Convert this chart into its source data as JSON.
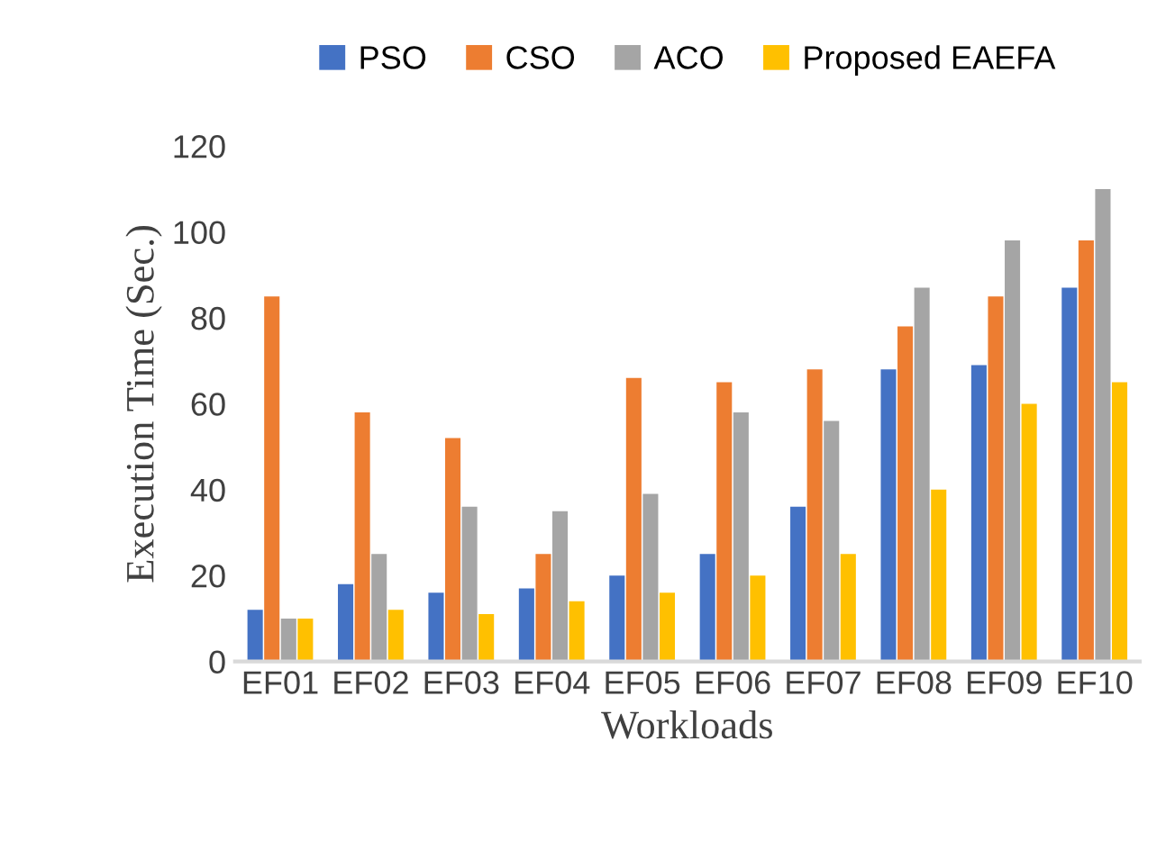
{
  "chart_data": {
    "type": "bar",
    "xlabel": "Workloads",
    "ylabel": "Execution Time (Sec.)",
    "categories": [
      "EF01",
      "EF02",
      "EF03",
      "EF04",
      "EF05",
      "EF06",
      "EF07",
      "EF08",
      "EF09",
      "EF10"
    ],
    "series": [
      {
        "name": "PSO",
        "color": "#4472c4",
        "values": [
          12,
          18,
          16,
          17,
          20,
          25,
          36,
          68,
          69,
          87
        ]
      },
      {
        "name": "CSO",
        "color": "#ed7d31",
        "values": [
          85,
          58,
          52,
          25,
          66,
          65,
          68,
          78,
          85,
          98
        ]
      },
      {
        "name": "ACO",
        "color": "#a5a5a5",
        "values": [
          10,
          25,
          36,
          35,
          39,
          58,
          56,
          87,
          98,
          110
        ]
      },
      {
        "name": "Proposed EAEFA",
        "color": "#ffc000",
        "values": [
          10,
          12,
          11,
          14,
          16,
          20,
          25,
          40,
          60,
          65
        ]
      }
    ],
    "ylim": [
      0,
      120
    ],
    "yticks": [
      0,
      20,
      40,
      60,
      80,
      100,
      120
    ],
    "grid": false,
    "legend": "top"
  }
}
